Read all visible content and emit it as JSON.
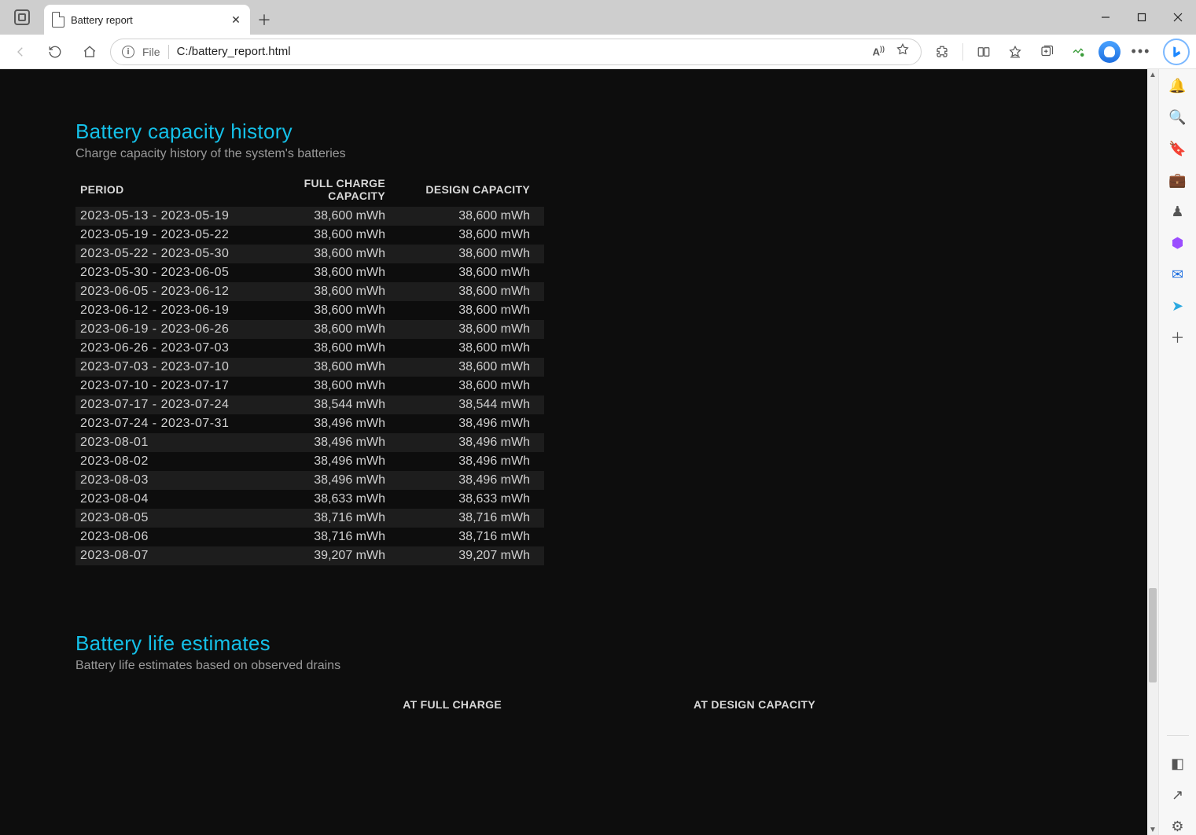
{
  "window": {
    "tab_title": "Battery report"
  },
  "address": {
    "scheme_label": "File",
    "url": "C:/battery_report.html"
  },
  "page": {
    "section1": {
      "title": "Battery capacity history",
      "subtitle": "Charge capacity history of the system's batteries",
      "columns": {
        "period": "PERIOD",
        "full": "FULL CHARGE CAPACITY",
        "design": "DESIGN CAPACITY"
      },
      "rows": [
        {
          "period": "2023-05-13 - 2023-05-19",
          "full": "38,600 mWh",
          "design": "38,600 mWh"
        },
        {
          "period": "2023-05-19 - 2023-05-22",
          "full": "38,600 mWh",
          "design": "38,600 mWh"
        },
        {
          "period": "2023-05-22 - 2023-05-30",
          "full": "38,600 mWh",
          "design": "38,600 mWh"
        },
        {
          "period": "2023-05-30 - 2023-06-05",
          "full": "38,600 mWh",
          "design": "38,600 mWh"
        },
        {
          "period": "2023-06-05 - 2023-06-12",
          "full": "38,600 mWh",
          "design": "38,600 mWh"
        },
        {
          "period": "2023-06-12 - 2023-06-19",
          "full": "38,600 mWh",
          "design": "38,600 mWh"
        },
        {
          "period": "2023-06-19 - 2023-06-26",
          "full": "38,600 mWh",
          "design": "38,600 mWh"
        },
        {
          "period": "2023-06-26 - 2023-07-03",
          "full": "38,600 mWh",
          "design": "38,600 mWh"
        },
        {
          "period": "2023-07-03 - 2023-07-10",
          "full": "38,600 mWh",
          "design": "38,600 mWh"
        },
        {
          "period": "2023-07-10 - 2023-07-17",
          "full": "38,600 mWh",
          "design": "38,600 mWh"
        },
        {
          "period": "2023-07-17 - 2023-07-24",
          "full": "38,544 mWh",
          "design": "38,544 mWh"
        },
        {
          "period": "2023-07-24 - 2023-07-31",
          "full": "38,496 mWh",
          "design": "38,496 mWh"
        },
        {
          "period": "2023-08-01",
          "full": "38,496 mWh",
          "design": "38,496 mWh"
        },
        {
          "period": "2023-08-02",
          "full": "38,496 mWh",
          "design": "38,496 mWh"
        },
        {
          "period": "2023-08-03",
          "full": "38,496 mWh",
          "design": "38,496 mWh"
        },
        {
          "period": "2023-08-04",
          "full": "38,633 mWh",
          "design": "38,633 mWh"
        },
        {
          "period": "2023-08-05",
          "full": "38,716 mWh",
          "design": "38,716 mWh"
        },
        {
          "period": "2023-08-06",
          "full": "38,716 mWh",
          "design": "38,716 mWh"
        },
        {
          "period": "2023-08-07",
          "full": "39,207 mWh",
          "design": "39,207 mWh"
        }
      ]
    },
    "section2": {
      "title": "Battery life estimates",
      "subtitle": "Battery life estimates based on observed drains",
      "columns": {
        "full": "AT FULL CHARGE",
        "design": "AT DESIGN CAPACITY"
      }
    }
  },
  "colors": {
    "page_bg": "#0d0d0d",
    "heading": "#14c0e8",
    "subheading": "#9a9a9a",
    "text": "#d0d0d0",
    "row_even_bg": "#1d1d1d"
  },
  "sidebar_icons": [
    {
      "name": "notifications-icon",
      "glyph": "🔔",
      "color": "#2e7bff"
    },
    {
      "name": "search-icon",
      "glyph": "🔍",
      "color": "#555"
    },
    {
      "name": "shopping-tag-icon",
      "glyph": "🔖",
      "color": "#3d6bff"
    },
    {
      "name": "toolbox-icon",
      "glyph": "💼",
      "color": "#d0752a"
    },
    {
      "name": "games-icon",
      "glyph": "♟",
      "color": "#555"
    },
    {
      "name": "office-icon",
      "glyph": "⬢",
      "color": "#9b4dff"
    },
    {
      "name": "outlook-icon",
      "glyph": "✉",
      "color": "#1e6fe0"
    },
    {
      "name": "send-icon",
      "glyph": "➤",
      "color": "#2aa8e0"
    },
    {
      "name": "add-icon",
      "glyph": "＋",
      "color": "#555"
    }
  ]
}
